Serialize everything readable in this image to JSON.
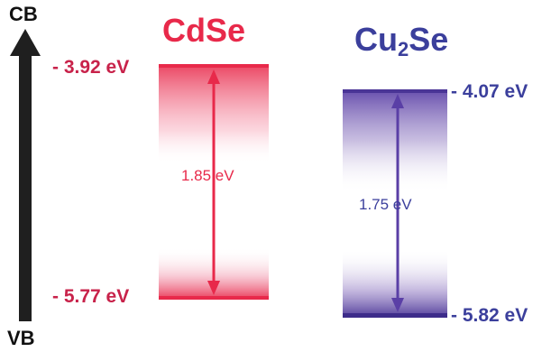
{
  "axis": {
    "top_label": "CB",
    "bottom_label": "VB"
  },
  "materials": [
    {
      "name": "CdSe",
      "cb_level": "- 3.92 eV",
      "vb_level": "- 5.77 eV",
      "band_gap": "1.85 eV",
      "color": "#e8294a",
      "label_color": "#c8224a"
    },
    {
      "name_main": "Cu",
      "name_sub": "2",
      "name_tail": "Se",
      "cb_level": "- 4.07 eV",
      "vb_level": "- 5.82 eV",
      "band_gap": "1.75 eV",
      "color": "#5a3fa6",
      "label_color": "#3b3f9c"
    }
  ],
  "icons": {
    "energy_axis": "up-arrow-icon",
    "gap_arrow": "double-headed-arrow-icon"
  }
}
